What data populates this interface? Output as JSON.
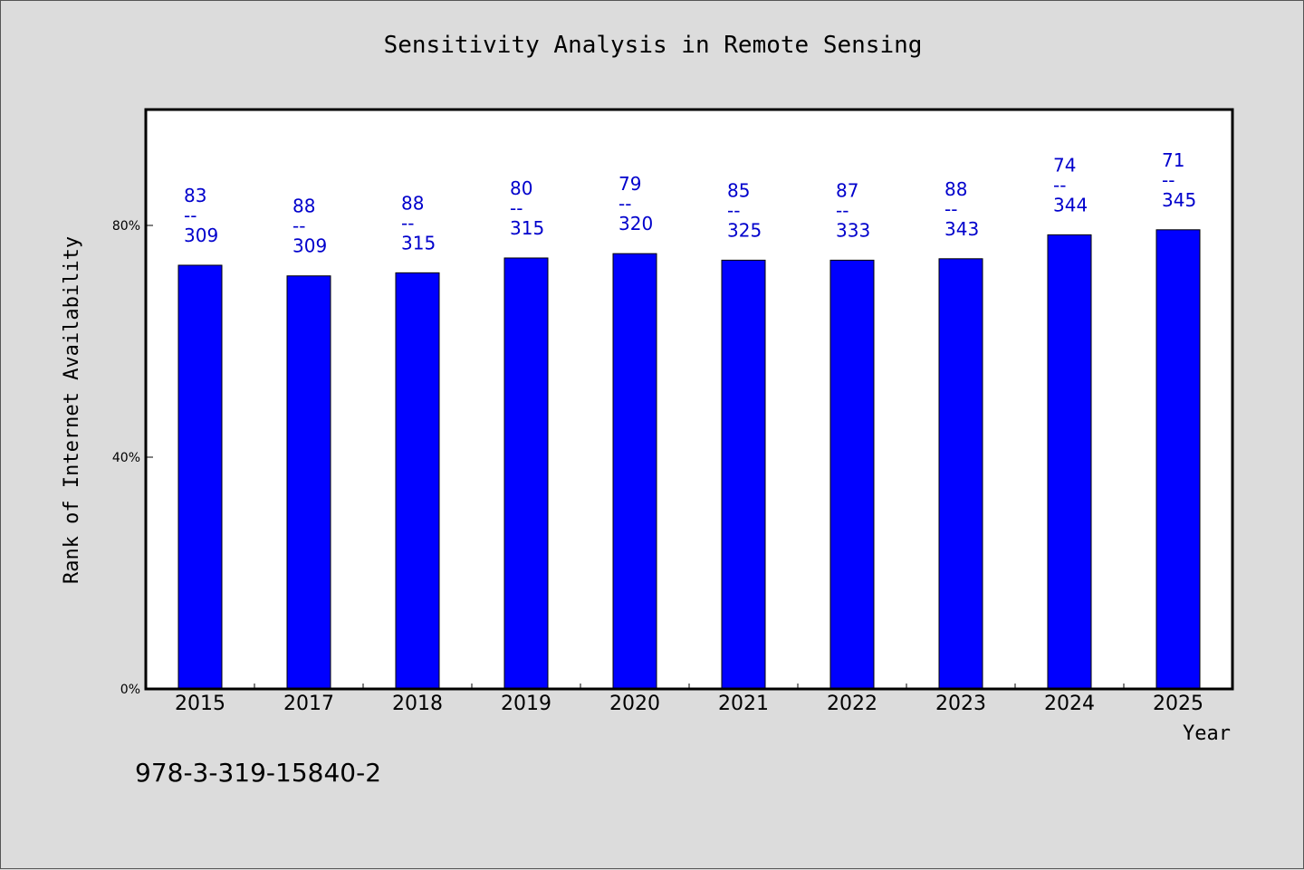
{
  "chart_data": {
    "type": "bar",
    "title": "Sensitivity Analysis in Remote Sensing",
    "xlabel": "Year",
    "ylabel": "Rank of Internet Availability",
    "categories": [
      "2015",
      "2017",
      "2018",
      "2019",
      "2020",
      "2021",
      "2022",
      "2023",
      "2024",
      "2025"
    ],
    "values": [
      0.7313,
      0.7129,
      0.7182,
      0.7438,
      0.7513,
      0.74,
      0.74,
      0.7425,
      0.7838,
      0.7925
    ],
    "data_labels": [
      "83\n--\n309",
      "88\n--\n309",
      "88\n--\n315",
      "80\n--\n315",
      "79\n--\n320",
      "85\n--\n325",
      "87\n--\n333",
      "88\n--\n343",
      "74\n--\n344",
      "71\n--\n345"
    ],
    "ylim": [
      0,
      1
    ],
    "yticks": [
      0,
      0.4,
      0.8
    ],
    "ytick_labels": [
      "0%",
      "40%",
      "80%"
    ],
    "grid": false,
    "legend": "none",
    "colors": {
      "bar": "#0000ff",
      "label": "#0000cc",
      "plot_background": "#ffffff",
      "page_background": "#dcdcdc"
    }
  },
  "footer_text": "978-3-319-15840-2"
}
